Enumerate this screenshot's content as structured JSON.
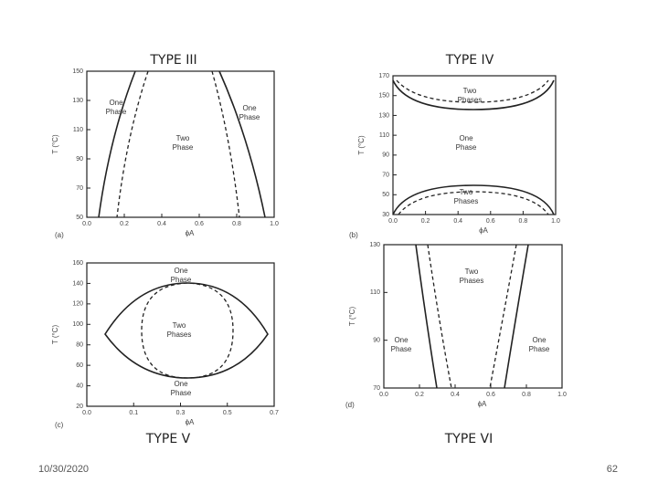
{
  "panels": [
    {
      "title": "TYPE III",
      "label": "(a)",
      "y_label": "T (°C)",
      "x_label": "ϕA",
      "yticks": [
        "150",
        "130",
        "110",
        "90",
        "70",
        "50"
      ],
      "xticks": [
        "0.0",
        "0.2",
        "0.4",
        "0.6",
        "0.8",
        "1.0"
      ],
      "regions": [
        "One Phase",
        "One Phase",
        "Two Phase"
      ]
    },
    {
      "title": "TYPE IV",
      "label": "(b)",
      "y_label": "T (°C)",
      "x_label": "ϕA",
      "yticks": [
        "170",
        "150",
        "130",
        "110",
        "90",
        "70",
        "50",
        "30"
      ],
      "xticks": [
        "0.0",
        "0.2",
        "0.4",
        "0.6",
        "0.8",
        "1.0"
      ],
      "regions": [
        "Two Phases",
        "One Phase",
        "Two Phases"
      ]
    },
    {
      "title": "TYPE V",
      "label": "(c)",
      "y_label": "T (°C)",
      "x_label": "ϕA",
      "yticks": [
        "160",
        "140",
        "120",
        "100",
        "80",
        "60",
        "40",
        "20"
      ],
      "xticks": [
        "0.0",
        "0.1",
        "0.3",
        "0.5",
        "0.7"
      ],
      "regions": [
        "One Phase",
        "Two Phases",
        "One Phase"
      ]
    },
    {
      "title": "TYPE VI",
      "label": "(d)",
      "y_label": "T (°C)",
      "x_label": "ϕA",
      "yticks": [
        "130",
        "110",
        "90",
        "70"
      ],
      "xticks": [
        "0.0",
        "0.2",
        "0.4",
        "0.6",
        "0.8",
        "1.0"
      ],
      "regions": [
        "Two Phases",
        "One Phase",
        "One Phase"
      ]
    }
  ],
  "footer": {
    "date": "10/30/2020",
    "page": "62"
  }
}
